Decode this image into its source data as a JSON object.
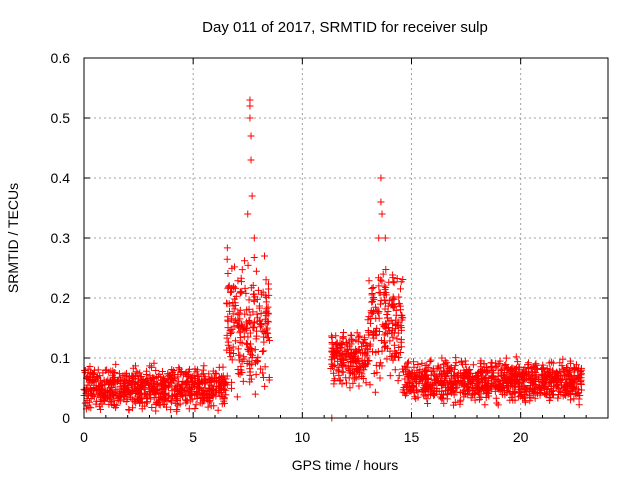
{
  "chart_data": {
    "type": "scatter",
    "title": "Day 011 of 2017, SRMTID for receiver sulp",
    "xlabel": "GPS time / hours",
    "ylabel": "SRMTID / TECUs",
    "xlim": [
      0,
      24
    ],
    "ylim": [
      0,
      0.6
    ],
    "x_ticks": [
      "0",
      "5",
      "10",
      "15",
      "20"
    ],
    "y_ticks": [
      "0",
      "0.1",
      "0.2",
      "0.3",
      "0.4",
      "0.5",
      "0.6"
    ],
    "grid": true,
    "marker": "+",
    "colors": {
      "series": "#ff0000",
      "axis": "#000000",
      "grid": "#a0a0a0"
    },
    "series": [
      {
        "name": "SRMTID",
        "segments": [
          {
            "x_start": 0.0,
            "x_end": 6.5,
            "baseline": 0.05,
            "spread": 0.03
          },
          {
            "x_start": 6.5,
            "x_end": 8.5,
            "baseline": 0.15,
            "spread": 0.1
          },
          {
            "x_start": 11.3,
            "x_end": 13.0,
            "baseline": 0.1,
            "spread": 0.04
          },
          {
            "x_start": 13.0,
            "x_end": 14.6,
            "baseline": 0.15,
            "spread": 0.08
          },
          {
            "x_start": 14.6,
            "x_end": 22.8,
            "baseline": 0.06,
            "spread": 0.03
          }
        ],
        "peaks": [
          {
            "x": 7.6,
            "y": 0.53
          },
          {
            "x": 7.6,
            "y": 0.52
          },
          {
            "x": 7.6,
            "y": 0.5
          },
          {
            "x": 7.65,
            "y": 0.47
          },
          {
            "x": 7.65,
            "y": 0.43
          },
          {
            "x": 7.7,
            "y": 0.37
          },
          {
            "x": 7.5,
            "y": 0.34
          },
          {
            "x": 7.8,
            "y": 0.3
          },
          {
            "x": 13.6,
            "y": 0.4
          },
          {
            "x": 13.6,
            "y": 0.36
          },
          {
            "x": 13.65,
            "y": 0.34
          },
          {
            "x": 13.5,
            "y": 0.3
          },
          {
            "x": 13.8,
            "y": 0.3
          },
          {
            "x": 11.35,
            "y": 0.0
          }
        ]
      }
    ]
  }
}
